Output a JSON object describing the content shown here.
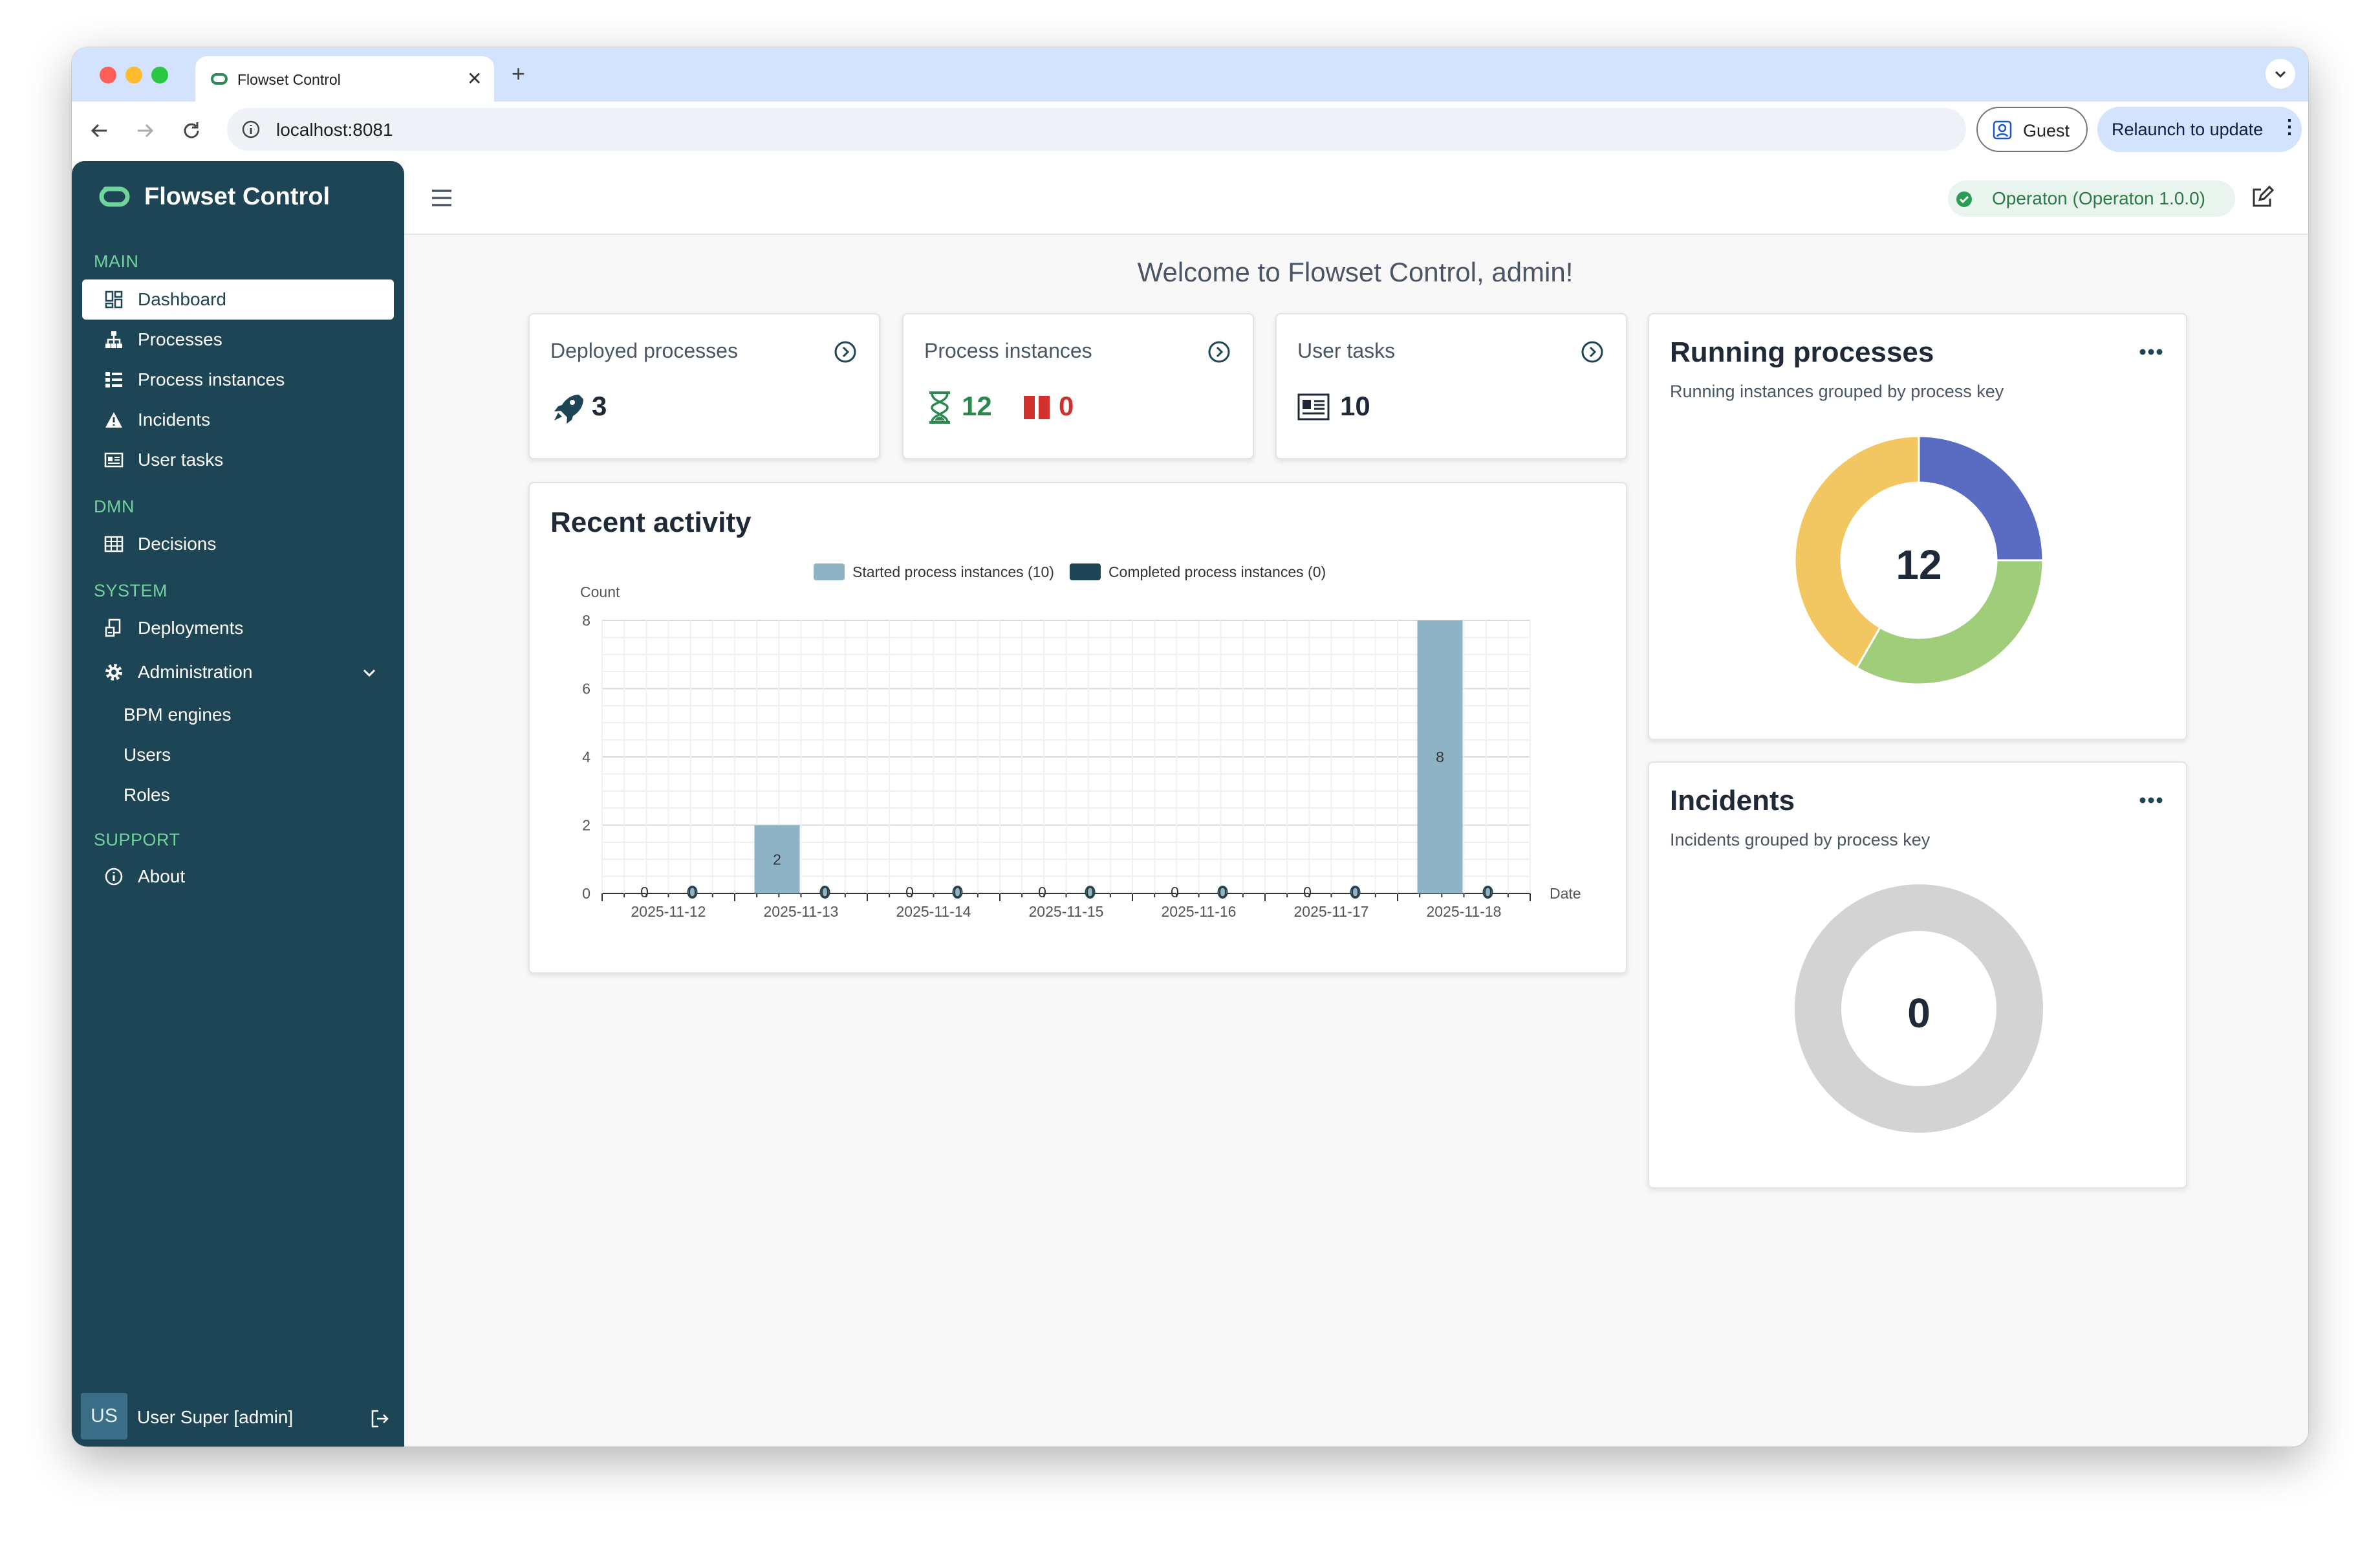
{
  "browser": {
    "tab_title": "Flowset Control",
    "url": "localhost:8081",
    "guest_label": "Guest",
    "relaunch_label": "Relaunch to update"
  },
  "sidebar": {
    "brand": "Flowset Control",
    "sections": {
      "main": "MAIN",
      "dmn": "DMN",
      "system": "SYSTEM",
      "support": "SUPPORT"
    },
    "items": {
      "dashboard": "Dashboard",
      "processes": "Processes",
      "process_instances": "Process instances",
      "incidents": "Incidents",
      "user_tasks": "User tasks",
      "decisions": "Decisions",
      "deployments": "Deployments",
      "administration": "Administration",
      "bpm_engines": "BPM engines",
      "users": "Users",
      "roles": "Roles",
      "about": "About"
    },
    "user": {
      "initials": "US",
      "name": "User Super [admin]"
    }
  },
  "header": {
    "engine_status": "Operaton (Operaton 1.0.0)"
  },
  "welcome": "Welcome to Flowset Control, admin!",
  "stats": {
    "deployed": {
      "label": "Deployed processes",
      "value": "3"
    },
    "instances": {
      "label": "Process instances",
      "running": "12",
      "suspended": "0"
    },
    "tasks": {
      "label": "User tasks",
      "value": "10"
    }
  },
  "recent_activity": {
    "title": "Recent activity"
  },
  "running_processes": {
    "title": "Running processes",
    "subtitle": "Running instances grouped by process key",
    "total": "12"
  },
  "incidents_card": {
    "title": "Incidents",
    "subtitle": "Incidents grouped by process key",
    "total": "0"
  },
  "colors": {
    "sidebar": "#1e4556",
    "accent_green": "#6fd39b",
    "started_bar": "#8db3c4",
    "completed_bar": "#1e4556",
    "donut_yellow": "#f2c661",
    "donut_blue": "#5a6bc2",
    "donut_green": "#9fcd7a",
    "donut_empty": "#d3d3d3",
    "danger": "#d0312d"
  },
  "chart_data": {
    "type": "bar",
    "title": "",
    "xlabel": "Date",
    "ylabel": "Count",
    "ylim": [
      0,
      8
    ],
    "yticks": [
      0,
      2,
      4,
      6,
      8
    ],
    "legend": "top",
    "categories": [
      "2025-11-12",
      "2025-11-13",
      "2025-11-14",
      "2025-11-15",
      "2025-11-16",
      "2025-11-17",
      "2025-11-18"
    ],
    "series": [
      {
        "name": "Started process instances (10)",
        "values": [
          0,
          2,
          0,
          0,
          0,
          0,
          8
        ],
        "color": "#8db3c4"
      },
      {
        "name": "Completed process instances (0)",
        "values": [
          0,
          0,
          0,
          0,
          0,
          0,
          0
        ],
        "color": "#1e4556"
      }
    ],
    "data_labels": true
  },
  "donut_running": {
    "values": [
      3,
      4,
      5
    ],
    "colors": [
      "#5a6bc2",
      "#9fcd7a",
      "#f2c661"
    ]
  }
}
